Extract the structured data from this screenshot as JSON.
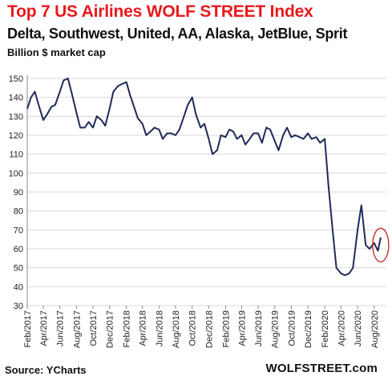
{
  "title": "Top 7 US Airlines WOLF STREET Index",
  "subtitle": "Delta, Southwest, United, AA, Alaska, JetBlue, Sprit",
  "unit_label": "Billion $ market cap",
  "source": "Source: YCharts",
  "brand": "WOLFSTREET.com",
  "colors": {
    "title": "#e8191c",
    "line": "#1f2a5a",
    "highlight": "#cc1e1e",
    "grid": "#d9d9d9"
  },
  "chart_data": {
    "type": "line",
    "title": "Top 7 US Airlines WOLF STREET Index",
    "ylabel": "Billion $ market cap",
    "ylim": [
      30,
      150
    ],
    "yticks": [
      30,
      40,
      50,
      60,
      70,
      80,
      90,
      100,
      110,
      120,
      130,
      140,
      150
    ],
    "xlim": [
      "2017-02-01",
      "2020-09-15"
    ],
    "xticks": [
      "Feb/2017",
      "Apr/2017",
      "Jun/2017",
      "Aug/2017",
      "Oct/2017",
      "Dec/2017",
      "Feb/2018",
      "Apr/2018",
      "Jun/2018",
      "Aug/2018",
      "Oct/2018",
      "Dec/2018",
      "Feb/2019",
      "Apr/2019",
      "Jun/2019",
      "Aug/2019",
      "Oct/2019",
      "Dec/2019",
      "Feb/2020",
      "Apr/2020",
      "Jun/2020",
      "Aug/2020"
    ],
    "grid": true,
    "annotations": [
      {
        "type": "ellipse",
        "x": "2020-08-25",
        "y": 62,
        "color": "#cc1e1e"
      }
    ],
    "series": [
      {
        "x": [
          "2017-02-01",
          "2017-02-15",
          "2017-03-01",
          "2017-03-15",
          "2017-04-01",
          "2017-04-15",
          "2017-05-01",
          "2017-05-15",
          "2017-06-01",
          "2017-06-15",
          "2017-07-01",
          "2017-07-15",
          "2017-08-01",
          "2017-08-15",
          "2017-09-01",
          "2017-09-15",
          "2017-10-01",
          "2017-10-15",
          "2017-11-01",
          "2017-11-15",
          "2017-12-01",
          "2017-12-15",
          "2018-01-01",
          "2018-01-15",
          "2018-02-01",
          "2018-02-15",
          "2018-03-01",
          "2018-03-15",
          "2018-04-01",
          "2018-04-15",
          "2018-05-01",
          "2018-05-15",
          "2018-06-01",
          "2018-06-15",
          "2018-07-01",
          "2018-07-15",
          "2018-08-01",
          "2018-08-15",
          "2018-09-01",
          "2018-09-15",
          "2018-10-01",
          "2018-10-15",
          "2018-11-01",
          "2018-11-15",
          "2018-12-01",
          "2018-12-15",
          "2019-01-01",
          "2019-01-15",
          "2019-02-01",
          "2019-02-15",
          "2019-03-01",
          "2019-03-15",
          "2019-04-01",
          "2019-04-15",
          "2019-05-01",
          "2019-05-15",
          "2019-06-01",
          "2019-06-15",
          "2019-07-01",
          "2019-07-15",
          "2019-08-01",
          "2019-08-15",
          "2019-09-01",
          "2019-09-15",
          "2019-10-01",
          "2019-10-15",
          "2019-11-01",
          "2019-11-15",
          "2019-12-01",
          "2019-12-15",
          "2020-01-01",
          "2020-01-15",
          "2020-02-01",
          "2020-02-15",
          "2020-03-01",
          "2020-03-15",
          "2020-04-01",
          "2020-04-15",
          "2020-05-01",
          "2020-05-15",
          "2020-06-01",
          "2020-06-15",
          "2020-07-01",
          "2020-07-15",
          "2020-08-01",
          "2020-08-15",
          "2020-08-25"
        ],
        "values": [
          134,
          140,
          143,
          136,
          128,
          131,
          135,
          136,
          143,
          149,
          150,
          142,
          132,
          124,
          124,
          127,
          124,
          130,
          128,
          125,
          134,
          143,
          146,
          147,
          148,
          141,
          135,
          129,
          126,
          120,
          122,
          124,
          123,
          118,
          121,
          121,
          120,
          123,
          130,
          136,
          140,
          131,
          124,
          126,
          118,
          110,
          112,
          120,
          119,
          123,
          122,
          118,
          120,
          115,
          118,
          121,
          121,
          116,
          124,
          123,
          117,
          112,
          120,
          124,
          119,
          120,
          119,
          118,
          121,
          118,
          119,
          116,
          118,
          93,
          70,
          50,
          47,
          46,
          47,
          50,
          70,
          83,
          62,
          60,
          63,
          59,
          66
        ]
      }
    ]
  }
}
